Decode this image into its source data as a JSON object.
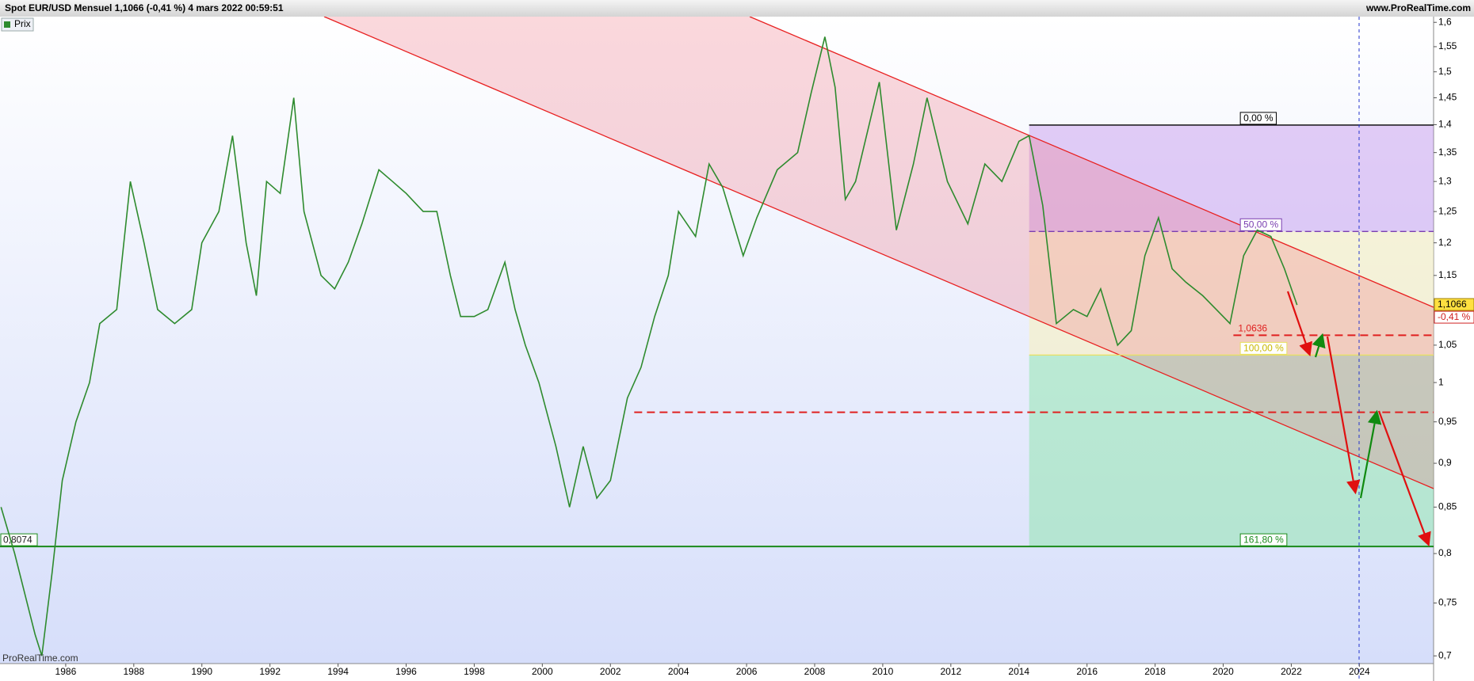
{
  "header": {
    "title": "Spot EUR/USD Mensuel 1,1066 (-0,41 %) 4 mars 2022 00:59:51",
    "site": "www.ProRealTime.com",
    "watermark": "ProRealTime.com"
  },
  "chart_data": {
    "type": "line",
    "x": [
      1984.1,
      1984.5,
      1985.1,
      1985.3,
      1985.6,
      1985.9,
      1986.3,
      1986.7,
      1987.0,
      1987.5,
      1987.9,
      1988.3,
      1988.7,
      1989.2,
      1989.7,
      1990.0,
      1990.5,
      1990.9,
      1991.3,
      1991.6,
      1991.9,
      1992.3,
      1992.7,
      1993.0,
      1993.5,
      1993.9,
      1994.3,
      1994.7,
      1995.2,
      1995.6,
      1996.0,
      1996.5,
      1996.9,
      1997.3,
      1997.6,
      1998.0,
      1998.4,
      1998.9,
      1999.2,
      1999.5,
      1999.9,
      2000.4,
      2000.8,
      2001.2,
      2001.6,
      2002.0,
      2002.5,
      2002.9,
      2003.3,
      2003.7,
      2004.0,
      2004.5,
      2004.9,
      2005.3,
      2005.9,
      2006.3,
      2006.9,
      2007.5,
      2007.9,
      2008.3,
      2008.6,
      2008.9,
      2009.2,
      2009.9,
      2010.4,
      2010.9,
      2011.3,
      2011.9,
      2012.5,
      2013.0,
      2013.5,
      2014.0,
      2014.3,
      2014.7,
      2015.1,
      2015.6,
      2016.0,
      2016.4,
      2016.9,
      2017.3,
      2017.7,
      2018.1,
      2018.5,
      2018.9,
      2019.4,
      2019.8,
      2020.2,
      2020.6,
      2021.0,
      2021.4,
      2021.8,
      2022.17
    ],
    "series": [
      {
        "name": "Prix",
        "color": "#2e8b2e",
        "values": [
          0.85,
          0.8,
          0.72,
          0.7,
          0.78,
          0.88,
          0.95,
          1.0,
          1.08,
          1.1,
          1.3,
          1.2,
          1.1,
          1.08,
          1.1,
          1.2,
          1.25,
          1.38,
          1.2,
          1.12,
          1.3,
          1.28,
          1.45,
          1.25,
          1.15,
          1.13,
          1.17,
          1.23,
          1.32,
          1.3,
          1.28,
          1.25,
          1.25,
          1.15,
          1.09,
          1.09,
          1.1,
          1.17,
          1.1,
          1.05,
          1.0,
          0.92,
          0.85,
          0.92,
          0.86,
          0.88,
          0.98,
          1.02,
          1.09,
          1.15,
          1.25,
          1.21,
          1.33,
          1.29,
          1.18,
          1.24,
          1.32,
          1.35,
          1.46,
          1.57,
          1.47,
          1.27,
          1.3,
          1.48,
          1.22,
          1.33,
          1.45,
          1.3,
          1.23,
          1.33,
          1.3,
          1.37,
          1.38,
          1.26,
          1.08,
          1.1,
          1.09,
          1.13,
          1.05,
          1.07,
          1.18,
          1.24,
          1.16,
          1.14,
          1.12,
          1.1,
          1.08,
          1.18,
          1.22,
          1.21,
          1.16,
          1.1066
        ]
      }
    ],
    "xlim": [
      1984.07,
      2026.18
    ],
    "xticks": [
      1986,
      1988,
      1990,
      1992,
      1994,
      1996,
      1998,
      2000,
      2002,
      2004,
      2006,
      2008,
      2010,
      2012,
      2014,
      2016,
      2018,
      2020,
      2022,
      2024
    ],
    "ylim": [
      0.693,
      1.612
    ],
    "log_scale": true,
    "yticks": [
      {
        "value": 0.7,
        "label": "0,7"
      },
      {
        "value": 0.75,
        "label": "0,75"
      },
      {
        "value": 0.8,
        "label": "0,8"
      },
      {
        "value": 0.85,
        "label": "0,85"
      },
      {
        "value": 0.9,
        "label": "0,9"
      },
      {
        "value": 0.95,
        "label": "0,95"
      },
      1,
      {
        "value": 1.05,
        "label": "1,05"
      },
      {
        "value": 1.1,
        "label": "1,1"
      },
      {
        "value": 1.15,
        "label": "1,15"
      },
      {
        "value": 1.2,
        "label": "1,2"
      },
      {
        "value": 1.25,
        "label": "1,25"
      },
      {
        "value": 1.3,
        "label": "1,3"
      },
      {
        "value": 1.35,
        "label": "1,35"
      },
      {
        "value": 1.4,
        "label": "1,4"
      },
      {
        "value": 1.45,
        "label": "1,45"
      },
      {
        "value": 1.5,
        "label": "1,5"
      },
      {
        "value": 1.55,
        "label": "1,55"
      },
      {
        "value": 1.6,
        "label": "1,6"
      }
    ],
    "last": {
      "value": 1.1066,
      "label": "1,1066",
      "change": -0.41,
      "change_label": "-0,41 %"
    },
    "fibonacci": {
      "start": 2014.3,
      "levels": [
        {
          "ratio": 0,
          "label": "0,00 %",
          "price": 1.3993,
          "color": "#000000",
          "zone": "rgba(190,140,235,0.42)"
        },
        {
          "ratio": 50,
          "label": "50,00 %",
          "price": 1.2179,
          "color": "#7a3fb0",
          "zone": "rgba(248,240,185,0.55)"
        },
        {
          "ratio": 100,
          "label": "100,00 %",
          "price": 1.0365,
          "color": "#e8e060",
          "zone": "rgba(140,230,170,0.5)"
        },
        {
          "ratio": 161.8,
          "label": "161,80 %",
          "price": 0.8074,
          "price_label": "0,8074",
          "color": "#1a8a1a"
        }
      ]
    },
    "levels": [
      {
        "price": 1.0636,
        "label": "1,0636",
        "from": 2020.3,
        "color": "#e02020"
      },
      {
        "price": 0.962,
        "from": 2002.7,
        "color": "#e02020"
      }
    ]
  }
}
